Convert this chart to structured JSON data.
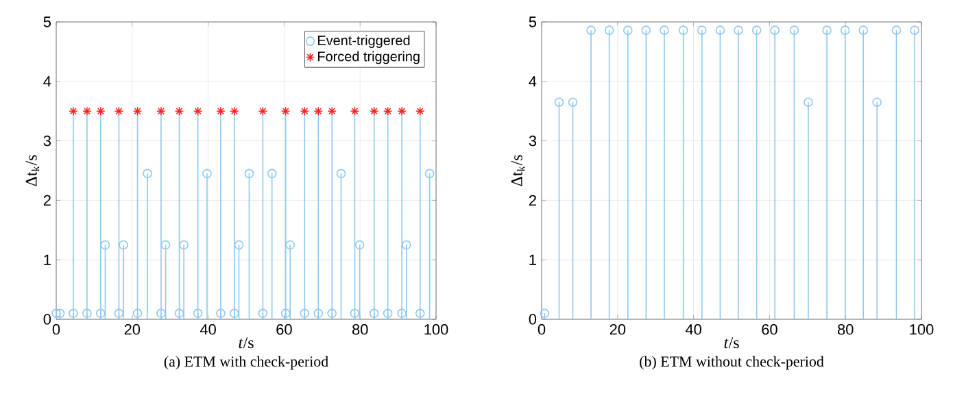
{
  "chart_data": [
    {
      "type": "lollipop",
      "title": "(a) ETM with check-period",
      "xlabel": "*t*/s",
      "ylabel": "Δt$_{k}$/s",
      "xlim": [
        0,
        100
      ],
      "xticks": [
        0,
        20,
        40,
        60,
        80,
        100
      ],
      "ylim": [
        0,
        5
      ],
      "yticks": [
        0,
        1,
        2,
        3,
        4,
        5
      ],
      "grid": true,
      "legend": "top right",
      "series": [
        {
          "name": "Event-triggered",
          "color": "#8ec8f0",
          "marker": "circle",
          "x": [
            0,
            1,
            4.5,
            8.1,
            11.7,
            12.9,
            16.5,
            17.7,
            21.4,
            24.0,
            27.6,
            28.8,
            32.4,
            33.6,
            37.3,
            39.7,
            43.3,
            46.9,
            48.1,
            50.8,
            54.4,
            56.8,
            60.4,
            61.6,
            65.4,
            69.0,
            72.6,
            75.0,
            78.6,
            79.9,
            83.7,
            87.3,
            91.0,
            92.2,
            95.8,
            98.3
          ],
          "values": [
            0.1,
            0.1,
            0.1,
            0.1,
            0.1,
            1.25,
            0.1,
            1.25,
            0.1,
            2.45,
            0.1,
            1.25,
            0.1,
            1.25,
            0.1,
            2.45,
            0.1,
            0.1,
            1.25,
            2.45,
            0.1,
            2.45,
            0.1,
            1.25,
            0.1,
            0.1,
            0.1,
            2.45,
            0.1,
            1.25,
            0.1,
            0.1,
            0.1,
            1.25,
            0.1,
            2.45
          ]
        },
        {
          "name": "Forced triggering",
          "color": "#ff2020",
          "marker": "cross",
          "x": [
            4.5,
            8.1,
            11.7,
            16.5,
            21.4,
            27.6,
            32.4,
            37.3,
            43.3,
            46.9,
            54.4,
            60.4,
            65.4,
            69.0,
            72.6,
            78.6,
            83.7,
            87.3,
            91.0,
            95.8
          ],
          "values": [
            3.5,
            3.5,
            3.5,
            3.5,
            3.5,
            3.5,
            3.5,
            3.5,
            3.5,
            3.5,
            3.5,
            3.5,
            3.5,
            3.5,
            3.5,
            3.5,
            3.5,
            3.5,
            3.5,
            3.5
          ]
        }
      ]
    },
    {
      "type": "lollipop",
      "title": "(b) ETM without check-period",
      "xlabel": "*t*/s",
      "ylabel": "Δt$_{k}$/s",
      "xlim": [
        0,
        100
      ],
      "xticks": [
        0,
        20,
        40,
        60,
        80,
        100
      ],
      "ylim": [
        0,
        5
      ],
      "yticks": [
        0,
        1,
        2,
        3,
        4,
        5
      ],
      "grid": true,
      "series": [
        {
          "color": "#8ec8f0",
          "marker": "circle",
          "x": [
            0.8,
            4.6,
            8.2,
            13.0,
            17.8,
            22.7,
            27.5,
            32.3,
            37.3,
            42.2,
            47.0,
            51.8,
            56.6,
            61.4,
            66.5,
            70.2,
            75.1,
            79.9,
            84.7,
            88.3,
            93.4,
            98.2
          ],
          "values": [
            0.1,
            3.65,
            3.65,
            4.86,
            4.86,
            4.86,
            4.86,
            4.86,
            4.86,
            4.86,
            4.86,
            4.86,
            4.86,
            4.86,
            4.86,
            3.65,
            4.86,
            4.86,
            4.86,
            3.65,
            4.86,
            4.86
          ]
        }
      ]
    }
  ]
}
